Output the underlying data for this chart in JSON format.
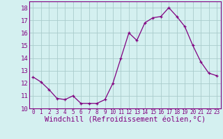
{
  "x": [
    0,
    1,
    2,
    3,
    4,
    5,
    6,
    7,
    8,
    9,
    10,
    11,
    12,
    13,
    14,
    15,
    16,
    17,
    18,
    19,
    20,
    21,
    22,
    23
  ],
  "y": [
    12.5,
    12.1,
    11.5,
    10.8,
    10.7,
    11.0,
    10.4,
    10.4,
    10.4,
    10.7,
    12.0,
    14.0,
    16.0,
    15.4,
    16.8,
    17.2,
    17.3,
    18.0,
    17.3,
    16.5,
    15.0,
    13.7,
    12.8,
    12.6
  ],
  "line_color": "#800080",
  "marker": "+",
  "xlabel": "Windchill (Refroidissement éolien,°C)",
  "ylim": [
    10,
    18.5
  ],
  "xlim": [
    -0.5,
    23.5
  ],
  "yticks": [
    10,
    11,
    12,
    13,
    14,
    15,
    16,
    17,
    18
  ],
  "xticks": [
    0,
    1,
    2,
    3,
    4,
    5,
    6,
    7,
    8,
    9,
    10,
    11,
    12,
    13,
    14,
    15,
    16,
    17,
    18,
    19,
    20,
    21,
    22,
    23
  ],
  "bg_color": "#d4f0f0",
  "grid_color": "#b0d8d8",
  "ytick_fontsize": 6.5,
  "xtick_fontsize": 5.5,
  "xlabel_fontsize": 7.5
}
